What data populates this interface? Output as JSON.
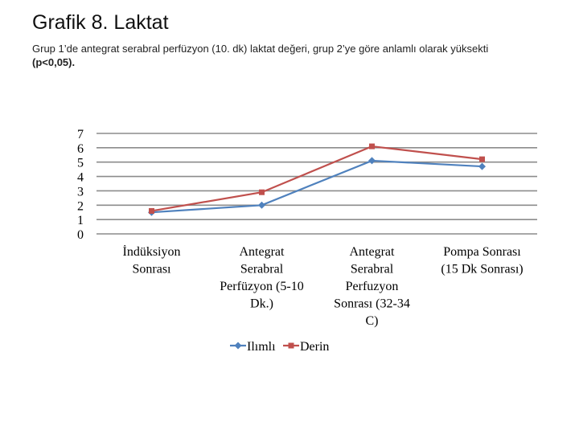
{
  "header": {
    "title": "Grafik 8. Laktat",
    "subtitle": "Grup 1’de antegrat serabral perfüzyon (10. dk) laktat değeri, grup 2’ye göre anlamlı olarak yüksekti",
    "significance": "(p<0,05)."
  },
  "chart_data": {
    "type": "line",
    "title": "",
    "xlabel": "",
    "ylabel": "",
    "ylim": [
      0,
      7
    ],
    "yticks": [
      "0",
      "1",
      "2",
      "3",
      "4",
      "5",
      "6",
      "7"
    ],
    "categories": [
      [
        "İndüksiyon",
        "Sonrası"
      ],
      [
        "Antegrat",
        "Serabral",
        "Perfüzyon (5-10",
        "Dk.)"
      ],
      [
        "Antegrat",
        "Serabral",
        "Perfuzyon",
        "Sonrası (32-34",
        "C)"
      ],
      [
        "Pompa Sonrası",
        "(15 Dk Sonrası)"
      ]
    ],
    "series": [
      {
        "name": "Ilımlı",
        "color": "#4f81bd",
        "marker": "diamond",
        "values": [
          1.5,
          2.0,
          5.1,
          4.7
        ]
      },
      {
        "name": "Derin",
        "color": "#c0504d",
        "marker": "square",
        "values": [
          1.6,
          2.9,
          6.1,
          5.2
        ]
      }
    ],
    "grid": true,
    "legend_position": "bottom"
  }
}
